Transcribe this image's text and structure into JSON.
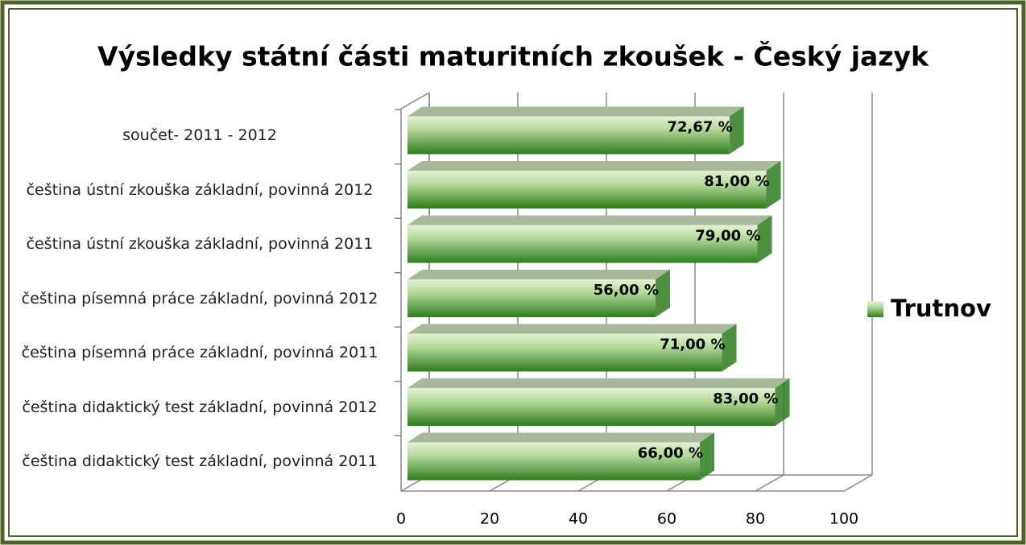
{
  "chart_data": {
    "type": "bar3d_horizontal",
    "title": "Výsledky státní části maturitních zkoušek - Český jazyk",
    "categories": [
      "součet- 2011 - 2012",
      "čeština ústní zkouška základní, povinná 2012",
      "čeština ústní zkouška základní, povinná 2011",
      "čeština písemná práce základní, povinná 2012",
      "čeština písemná práce základní, povinná 2011",
      "čeština didaktický test základní, povinná 2012",
      "čeština didaktický test základní, povinná 2011"
    ],
    "series": [
      {
        "name": "Trutnov",
        "color": "#2e7d1e",
        "values": [
          72.67,
          81,
          79,
          56,
          71,
          83,
          66
        ],
        "value_labels": [
          "72,67 %",
          "81,00 %",
          "79,00 %",
          "56,00 %",
          "71,00 %",
          "83,00 %",
          "66,00 %"
        ]
      }
    ],
    "xlim": [
      0,
      100
    ],
    "xticks": [
      0,
      20,
      40,
      60,
      80,
      100
    ],
    "grid": true,
    "legend": "right"
  }
}
